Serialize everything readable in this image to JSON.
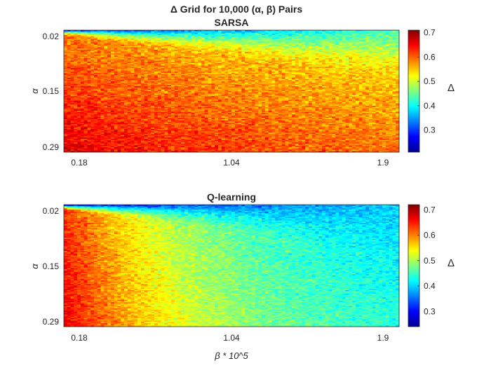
{
  "figure": {
    "suptitle": "Δ Grid for 10,000 (α, β) Pairs"
  },
  "chart_data": [
    {
      "type": "heatmap",
      "title": "SARSA",
      "xlabel": "",
      "ylabel": "α",
      "x_tick_labels": [
        "0.18",
        "1.04",
        "1.9"
      ],
      "y_tick_labels": [
        "0.02",
        "0.15",
        "0.29"
      ],
      "x_range": [
        0.18,
        1.9
      ],
      "y_range": [
        0.02,
        0.29
      ],
      "y_direction": "reversed",
      "grid_size": [
        100,
        100
      ],
      "colormap": "jet",
      "colorbar": {
        "label": "Δ",
        "range": [
          0.21,
          0.71
        ],
        "tick_labels": [
          "0.3",
          "0.4",
          "0.5",
          "0.6",
          "0.7"
        ],
        "ticks": [
          0.3,
          0.4,
          0.5,
          0.6,
          0.7
        ]
      },
      "model": {
        "top_low_alpha": 0.3,
        "top_high_alpha": 0.43,
        "peak": 0.66,
        "tail": 0.55,
        "beta_decay": 0.9,
        "alpha_rise": 0.13,
        "noise": 0.035
      }
    },
    {
      "type": "heatmap",
      "title": "Q-learning",
      "xlabel": "β * 10^5",
      "ylabel": "α",
      "x_tick_labels": [
        "0.18",
        "1.04",
        "1.9"
      ],
      "y_tick_labels": [
        "0.02",
        "0.15",
        "0.29"
      ],
      "x_range": [
        0.18,
        1.9
      ],
      "y_range": [
        0.02,
        0.29
      ],
      "y_direction": "reversed",
      "grid_size": [
        100,
        100
      ],
      "colormap": "jet",
      "colorbar": {
        "label": "Δ",
        "range": [
          0.24,
          0.72
        ],
        "tick_labels": [
          "0.3",
          "0.4",
          "0.5",
          "0.6",
          "0.7"
        ],
        "ticks": [
          0.3,
          0.4,
          0.5,
          0.6,
          0.7
        ]
      },
      "model": {
        "top_low_alpha": 0.3,
        "top_high_alpha": 0.4,
        "peak": 0.67,
        "tail": 0.41,
        "beta_decay": 2.2,
        "alpha_rise": 0.06,
        "noise": 0.03
      }
    }
  ]
}
